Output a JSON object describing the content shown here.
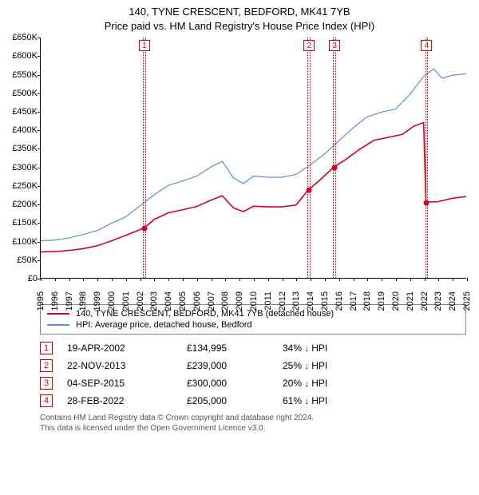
{
  "title_line1": "140, TYNE CRESCENT, BEDFORD, MK41 7YB",
  "title_line2": "Price paid vs. HM Land Registry's House Price Index (HPI)",
  "chart": {
    "type": "line",
    "y_axis": {
      "min": 0,
      "max": 650000,
      "step": 50000,
      "prefix": "£",
      "suffix_k": "K",
      "tick_color": "#000",
      "label_fontsize": 11
    },
    "x_axis": {
      "years": [
        1995,
        1996,
        1997,
        1998,
        1999,
        2000,
        2001,
        2002,
        2003,
        2004,
        2005,
        2006,
        2007,
        2008,
        2009,
        2010,
        2011,
        2012,
        2013,
        2014,
        2015,
        2016,
        2017,
        2018,
        2019,
        2020,
        2021,
        2022,
        2023,
        2024,
        2025
      ],
      "label_fontsize": 11
    },
    "colors": {
      "series_property": "#d4002a",
      "series_hpi": "#5b8fd6",
      "event_band_fill": "rgba(255,180,180,0.25)",
      "event_band_border": "#d00",
      "event_num_border": "#c00",
      "sale_dot": "#d4002a",
      "background": "#ffffff"
    },
    "line_width_property": 1.6,
    "line_width_hpi": 1.2,
    "events": [
      {
        "num": "1",
        "year": 2002.3,
        "band_years": 0.2
      },
      {
        "num": "2",
        "year": 2013.89,
        "band_years": 0.2
      },
      {
        "num": "3",
        "year": 2015.68,
        "band_years": 0.2
      },
      {
        "num": "4",
        "year": 2022.16,
        "band_years": 0.2
      }
    ],
    "series_hpi": [
      [
        1995.0,
        100000
      ],
      [
        1996.0,
        102000
      ],
      [
        1997.0,
        108000
      ],
      [
        1998.0,
        117000
      ],
      [
        1999.0,
        128000
      ],
      [
        2000.0,
        148000
      ],
      [
        2001.0,
        165000
      ],
      [
        2002.0,
        195000
      ],
      [
        2003.0,
        225000
      ],
      [
        2004.0,
        250000
      ],
      [
        2005.0,
        262000
      ],
      [
        2006.0,
        275000
      ],
      [
        2007.0,
        300000
      ],
      [
        2007.8,
        315000
      ],
      [
        2008.6,
        270000
      ],
      [
        2009.3,
        255000
      ],
      [
        2010.0,
        275000
      ],
      [
        2011.0,
        272000
      ],
      [
        2012.0,
        272000
      ],
      [
        2013.0,
        280000
      ],
      [
        2014.0,
        305000
      ],
      [
        2015.0,
        335000
      ],
      [
        2016.0,
        370000
      ],
      [
        2017.0,
        405000
      ],
      [
        2018.0,
        435000
      ],
      [
        2019.0,
        448000
      ],
      [
        2020.0,
        456000
      ],
      [
        2021.0,
        495000
      ],
      [
        2022.0,
        545000
      ],
      [
        2022.7,
        565000
      ],
      [
        2023.3,
        540000
      ],
      [
        2024.0,
        548000
      ],
      [
        2025.0,
        552000
      ]
    ],
    "series_property": [
      [
        1995.0,
        70000
      ],
      [
        1996.0,
        71000
      ],
      [
        1997.0,
        74000
      ],
      [
        1998.0,
        79000
      ],
      [
        1999.0,
        87000
      ],
      [
        2000.0,
        100000
      ],
      [
        2001.0,
        115000
      ],
      [
        2002.3,
        134995
      ],
      [
        2003.0,
        158000
      ],
      [
        2004.0,
        176000
      ],
      [
        2005.0,
        184000
      ],
      [
        2006.0,
        193000
      ],
      [
        2007.0,
        210000
      ],
      [
        2007.8,
        222000
      ],
      [
        2008.6,
        189000
      ],
      [
        2009.3,
        179000
      ],
      [
        2010.0,
        194000
      ],
      [
        2011.0,
        192000
      ],
      [
        2012.0,
        192000
      ],
      [
        2013.0,
        197000
      ],
      [
        2013.89,
        239000
      ],
      [
        2014.5,
        258000
      ],
      [
        2015.68,
        300000
      ],
      [
        2016.5,
        320000
      ],
      [
        2017.5,
        348000
      ],
      [
        2018.5,
        372000
      ],
      [
        2019.5,
        380000
      ],
      [
        2020.5,
        388000
      ],
      [
        2021.3,
        410000
      ],
      [
        2022.0,
        420000
      ],
      [
        2022.16,
        205000
      ],
      [
        2023.0,
        206000
      ],
      [
        2024.0,
        215000
      ],
      [
        2025.0,
        220000
      ]
    ],
    "sale_points": [
      {
        "year": 2002.3,
        "price": 134995
      },
      {
        "year": 2013.89,
        "price": 239000
      },
      {
        "year": 2015.68,
        "price": 300000
      },
      {
        "year": 2022.16,
        "price": 205000
      }
    ]
  },
  "legend": {
    "items": [
      {
        "color": "#d4002a",
        "label": "140, TYNE CRESCENT, BEDFORD, MK41 7YB (detached house)"
      },
      {
        "color": "#5b8fd6",
        "label": "HPI: Average price, detached house, Bedford"
      }
    ]
  },
  "sales": [
    {
      "num": "1",
      "date": "19-APR-2002",
      "price": "£134,995",
      "delta": "34%",
      "vs": "HPI"
    },
    {
      "num": "2",
      "date": "22-NOV-2013",
      "price": "£239,000",
      "delta": "25%",
      "vs": "HPI"
    },
    {
      "num": "3",
      "date": "04-SEP-2015",
      "price": "£300,000",
      "delta": "20%",
      "vs": "HPI"
    },
    {
      "num": "4",
      "date": "28-FEB-2022",
      "price": "£205,000",
      "delta": "61%",
      "vs": "HPI"
    }
  ],
  "footer_line1": "Contains HM Land Registry data © Crown copyright and database right 2024.",
  "footer_line2": "This data is licensed under the Open Government Licence v3.0.",
  "arrow_down": "↓"
}
